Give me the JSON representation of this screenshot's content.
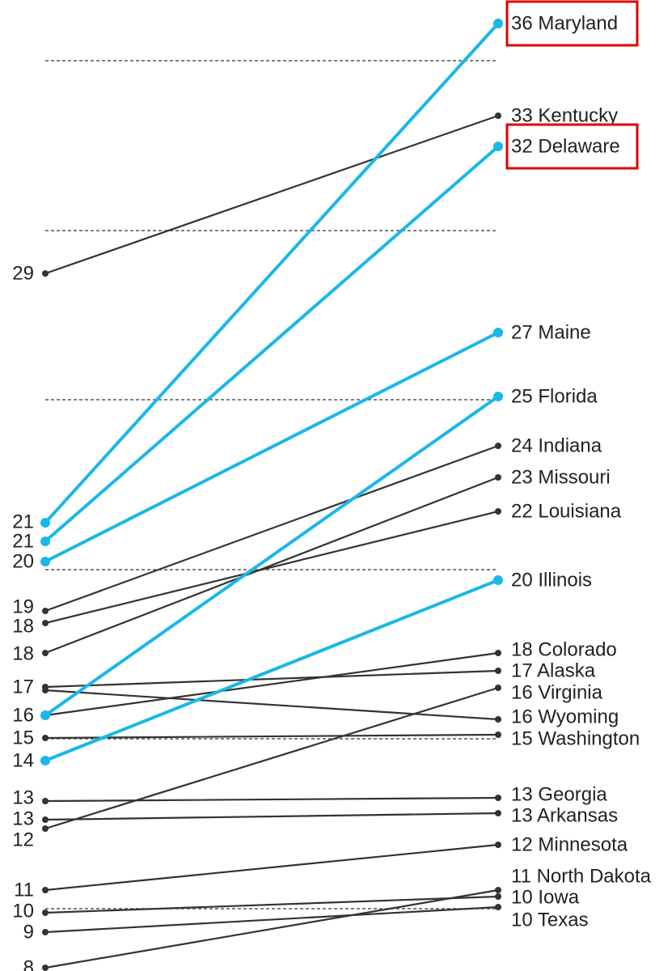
{
  "chart_data": {
    "type": "line",
    "title": "",
    "xlabel": "",
    "ylabel": "",
    "grid": true,
    "colors": {
      "highlight": "#1ab7ea",
      "default": "#333333",
      "annotation_box": "#e00000"
    },
    "series": [
      {
        "name": "Maryland",
        "start": 21,
        "end": 36,
        "start_label": "21",
        "end_label": "36 Maryland",
        "highlight": true,
        "boxed": true
      },
      {
        "name": "Kentucky",
        "start": 29,
        "end": 33,
        "start_label": "29",
        "end_label": "33 Kentucky",
        "highlight": false
      },
      {
        "name": "Delaware",
        "start": 21,
        "end": 32,
        "start_label": "21",
        "end_label": "32 Delaware",
        "highlight": true,
        "boxed": true
      },
      {
        "name": "Maine",
        "start": 20,
        "end": 27,
        "start_label": "20",
        "end_label": "27 Maine",
        "highlight": true
      },
      {
        "name": "Florida",
        "start": 16,
        "end": 25,
        "start_label": "16",
        "end_label": "25 Florida",
        "highlight": true
      },
      {
        "name": "Indiana",
        "start": 19,
        "end": 24,
        "start_label": "19",
        "end_label": "24 Indiana",
        "highlight": false
      },
      {
        "name": "Missouri",
        "start": 18,
        "end": 23,
        "start_label": "18",
        "end_label": "23 Missouri",
        "highlight": false
      },
      {
        "name": "Louisiana",
        "start": 18,
        "end": 22,
        "start_label": "18",
        "end_label": "22 Louisiana",
        "highlight": false
      },
      {
        "name": "Illinois",
        "start": 14,
        "end": 20,
        "start_label": "14",
        "end_label": "20 Illinois",
        "highlight": true
      },
      {
        "name": "Colorado",
        "start": 16,
        "end": 18,
        "start_label": "",
        "end_label": "18 Colorado",
        "highlight": false
      },
      {
        "name": "Alaska",
        "start": 17,
        "end": 17,
        "start_label": "17",
        "end_label": "17 Alaska",
        "highlight": false
      },
      {
        "name": "Virginia",
        "start": 12,
        "end": 16,
        "start_label": "12",
        "end_label": "16 Virginia",
        "highlight": false
      },
      {
        "name": "Wyoming",
        "start": 17,
        "end": 16,
        "start_label": "",
        "end_label": "16 Wyoming",
        "highlight": false
      },
      {
        "name": "Washington",
        "start": 15,
        "end": 15,
        "start_label": "15",
        "end_label": "15 Washington",
        "highlight": false
      },
      {
        "name": "Georgia",
        "start": 13,
        "end": 13,
        "start_label": "13",
        "end_label": "13 Georgia",
        "highlight": false
      },
      {
        "name": "Arkansas",
        "start": 13,
        "end": 13,
        "start_label": "13",
        "end_label": "13 Arkansas",
        "highlight": false
      },
      {
        "name": "Minnesota",
        "start": 11,
        "end": 12,
        "start_label": "11",
        "end_label": "12 Minnesota",
        "highlight": false
      },
      {
        "name": "North Dakota",
        "start": 8,
        "end": 11,
        "start_label": "8",
        "end_label": "11 North Dakota",
        "highlight": false
      },
      {
        "name": "Iowa",
        "start": 10,
        "end": 10,
        "start_label": "10",
        "end_label": "10 Iowa",
        "highlight": false
      },
      {
        "name": "Texas",
        "start": 9,
        "end": 10,
        "start_label": "9",
        "end_label": "10 Texas",
        "highlight": false
      }
    ]
  }
}
